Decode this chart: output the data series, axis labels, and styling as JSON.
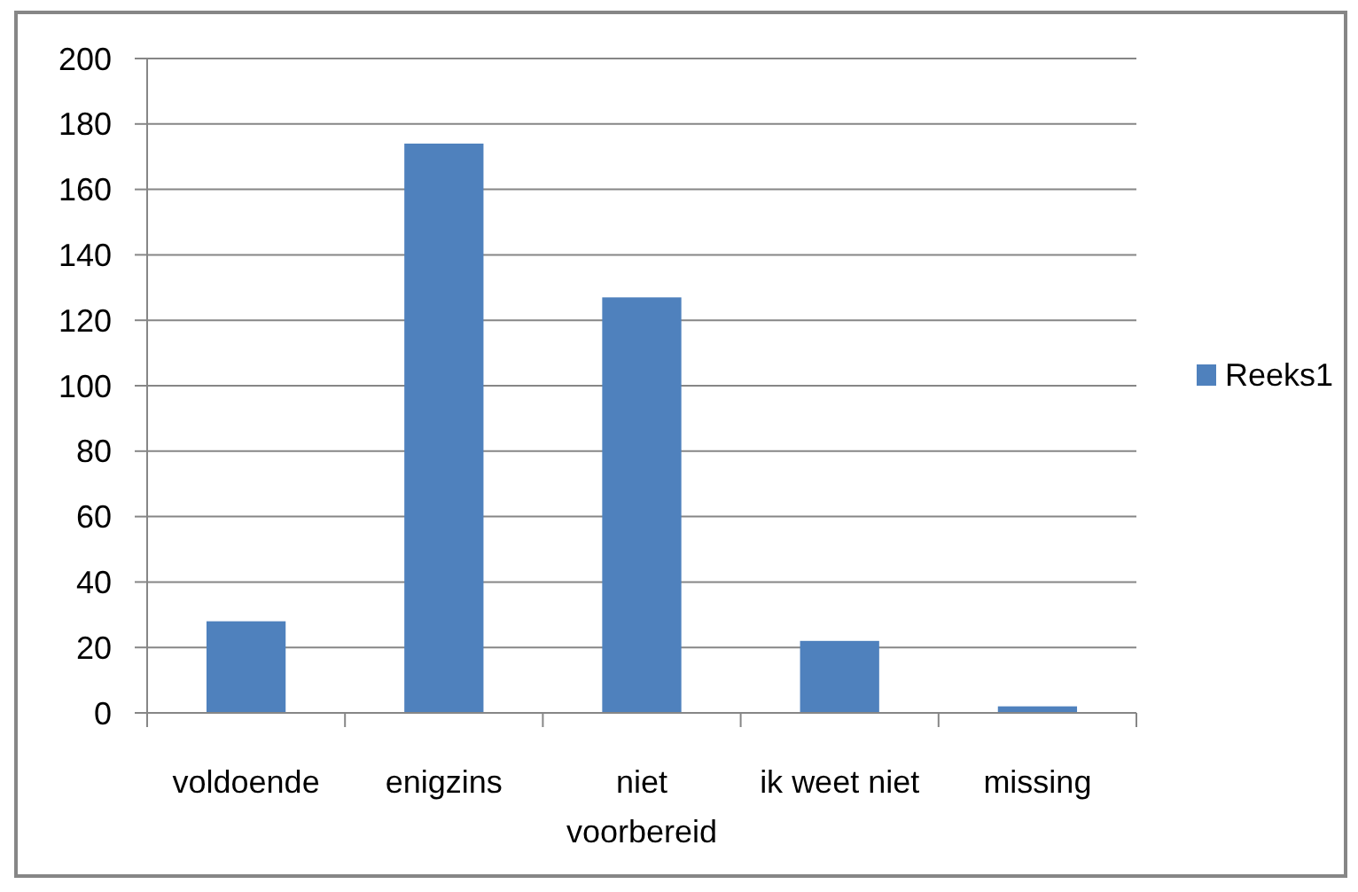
{
  "chart_data": {
    "type": "bar",
    "categories": [
      "voldoende",
      "enigzins",
      "niet voorbereid",
      "ik weet niet",
      "missing"
    ],
    "series": [
      {
        "name": "Reeks1",
        "color": "#4f81bd",
        "values": [
          28,
          174,
          127,
          22,
          2
        ]
      }
    ],
    "ylim": [
      0,
      200
    ],
    "yticks": [
      0,
      20,
      40,
      60,
      80,
      100,
      120,
      140,
      160,
      180,
      200
    ],
    "grid": "y",
    "legend": "right"
  }
}
